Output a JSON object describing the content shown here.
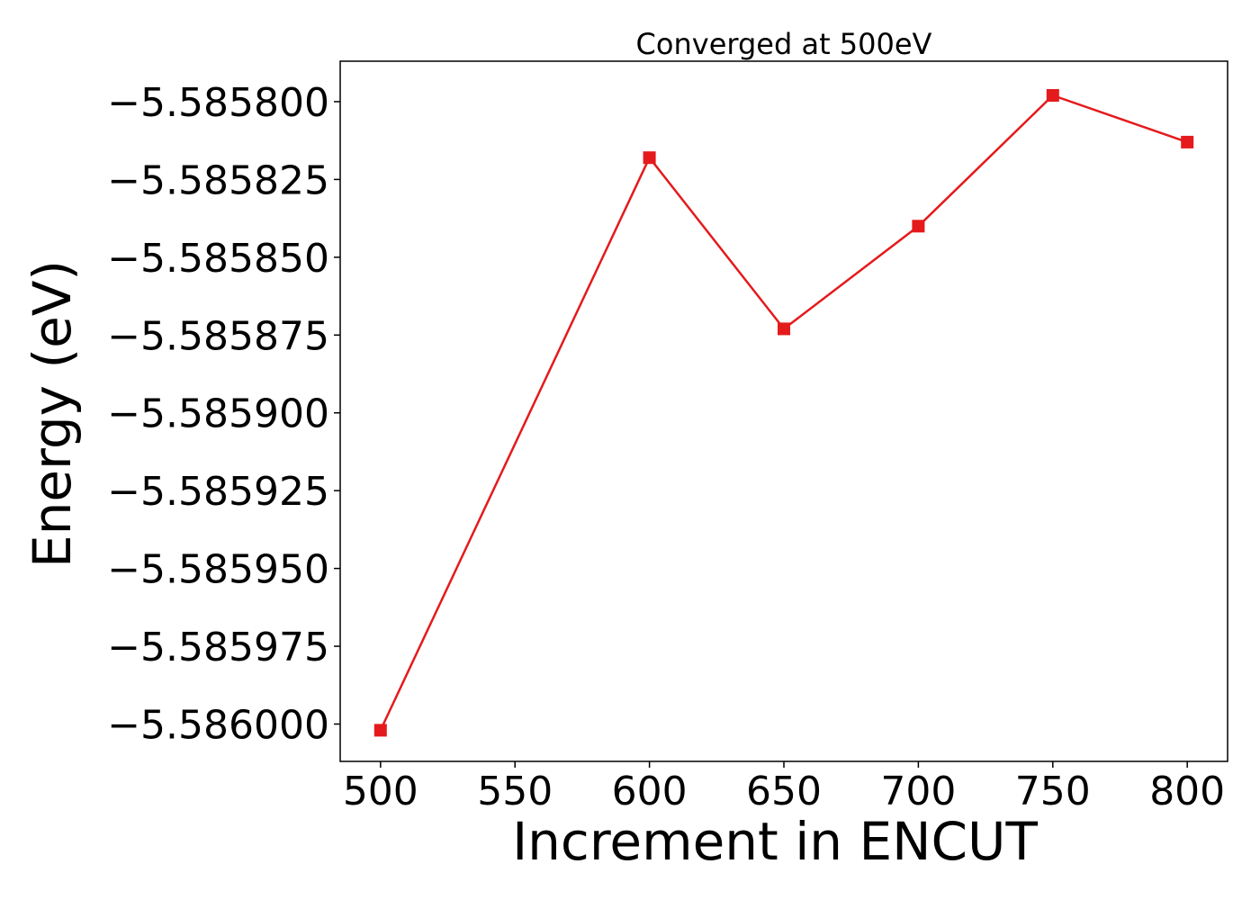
{
  "chart_data": {
    "type": "line",
    "title": "Converged at 500eV",
    "xlabel": "Increment in ENCUT",
    "ylabel": "Energy (eV)",
    "x": [
      500,
      600,
      650,
      700,
      750,
      800
    ],
    "series": [
      {
        "values": [
          -5.586002,
          -5.585818,
          -5.585873,
          -5.58584,
          -5.585798,
          -5.585813
        ],
        "color": "#e41a1c",
        "marker": "square"
      }
    ],
    "xticks": [
      500,
      550,
      600,
      650,
      700,
      750,
      800
    ],
    "xtick_labels": [
      "500",
      "550",
      "600",
      "650",
      "700",
      "750",
      "800"
    ],
    "yticks": [
      -5.5858,
      -5.585825,
      -5.58585,
      -5.585875,
      -5.5859,
      -5.585925,
      -5.58595,
      -5.585975,
      -5.586
    ],
    "ytick_labels": [
      "−5.585800",
      "−5.585825",
      "−5.585850",
      "−5.585875",
      "−5.585900",
      "−5.585925",
      "−5.585950",
      "−5.585975",
      "−5.586000"
    ],
    "xlim": [
      485,
      815
    ],
    "ylim": [
      -5.586012,
      -5.585787
    ],
    "grid": false
  }
}
